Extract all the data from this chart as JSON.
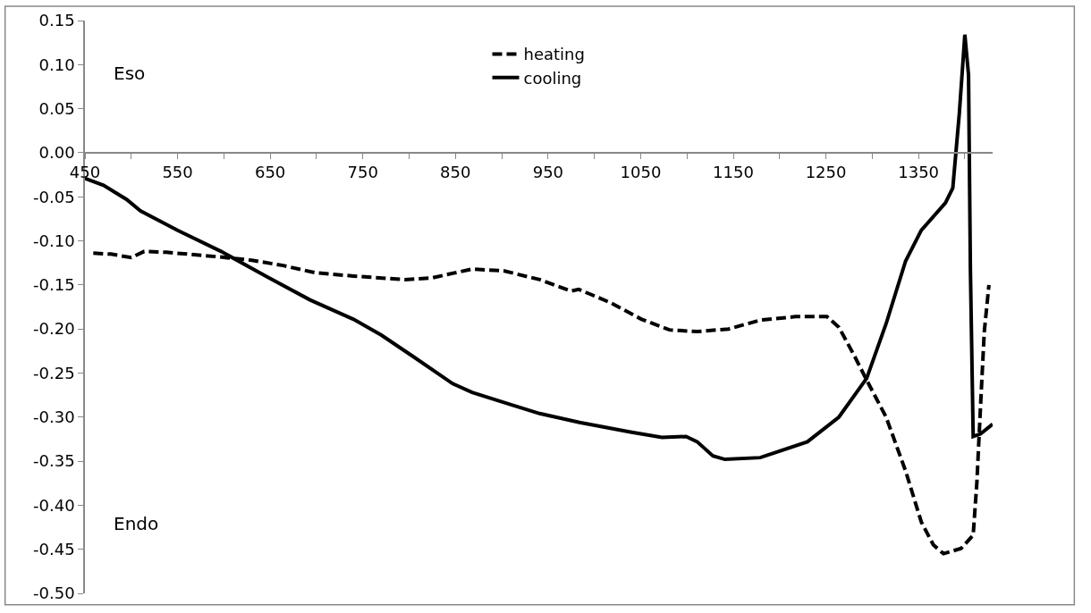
{
  "chart_data": {
    "type": "line",
    "xlim": [
      450,
      1430
    ],
    "xticks": [
      450,
      {
        "value": 500,
        "label": null
      },
      550,
      {
        "value": 600,
        "label": null
      },
      650,
      {
        "value": 700,
        "label": null
      },
      750,
      {
        "value": 800,
        "label": null
      },
      850,
      {
        "value": 900,
        "label": null
      },
      950,
      {
        "value": 1000,
        "label": null
      },
      1050,
      {
        "value": 1100,
        "label": null
      },
      1150,
      {
        "value": 1200,
        "label": null
      },
      1250,
      {
        "value": 1300,
        "label": null
      },
      1350,
      {
        "value": 1400,
        "label": null
      }
    ],
    "ylim": [
      -0.5,
      0.15
    ],
    "yticks": [
      {
        "value": 0.15,
        "label": "0.15"
      },
      {
        "value": 0.1,
        "label": "0.10"
      },
      {
        "value": 0.05,
        "label": "0.05"
      },
      {
        "value": 0,
        "label": "0.00"
      },
      {
        "value": -0.05,
        "label": "-0.05"
      },
      {
        "value": -0.1,
        "label": "-0.10"
      },
      {
        "value": -0.15,
        "label": "-0.15"
      },
      {
        "value": -0.2,
        "label": "-0.20"
      },
      {
        "value": -0.25,
        "label": "-0.25"
      },
      {
        "value": -0.3,
        "label": "-0.30"
      },
      {
        "value": -0.35,
        "label": "-0.35"
      },
      {
        "value": -0.4,
        "label": "-0.40"
      },
      {
        "value": -0.45,
        "label": "-0.45"
      },
      {
        "value": -0.5,
        "label": "-0.50"
      }
    ],
    "legend": "top",
    "marker": "none",
    "annotations": [
      "Eso",
      "Endo"
    ],
    "series": [
      {
        "name": "heating",
        "color": "#000000",
        "line_style": "dashed",
        "x": [
          459,
          478,
          500,
          514,
          538,
          593,
          630,
          664,
          698,
          740,
          795,
          825,
          868,
          902,
          941,
          975,
          983,
          1017,
          1051,
          1081,
          1111,
          1145,
          1179,
          1217,
          1251,
          1264,
          1281,
          1294,
          1315,
          1336,
          1353,
          1366,
          1377,
          1396,
          1409,
          1413,
          1417,
          1421,
          1426
        ],
        "values": [
          -0.114,
          -0.115,
          -0.119,
          -0.112,
          -0.113,
          -0.118,
          -0.122,
          -0.128,
          -0.136,
          -0.14,
          -0.144,
          -0.142,
          -0.132,
          -0.134,
          -0.144,
          -0.157,
          -0.155,
          -0.17,
          -0.189,
          -0.201,
          -0.203,
          -0.2,
          -0.19,
          -0.186,
          -0.186,
          -0.198,
          -0.231,
          -0.258,
          -0.3,
          -0.361,
          -0.419,
          -0.445,
          -0.455,
          -0.449,
          -0.434,
          -0.374,
          -0.286,
          -0.203,
          -0.15
        ]
      },
      {
        "name": "cooling",
        "color": "#000000",
        "line_style": "solid",
        "x": [
          450,
          470,
          495,
          510,
          550,
          597,
          647,
          693,
          740,
          770,
          804,
          847,
          868,
          910,
          941,
          984,
          1039,
          1073,
          1099,
          1111,
          1128,
          1141,
          1179,
          1230,
          1264,
          1294,
          1315,
          1336,
          1353,
          1379,
          1387,
          1394,
          1400,
          1404,
          1406,
          1409,
          1417,
          1430
        ],
        "values": [
          -0.029,
          -0.037,
          -0.053,
          -0.066,
          -0.088,
          -0.112,
          -0.141,
          -0.167,
          -0.189,
          -0.207,
          -0.231,
          -0.262,
          -0.272,
          -0.286,
          -0.296,
          -0.306,
          -0.317,
          -0.323,
          -0.322,
          -0.328,
          -0.344,
          -0.348,
          -0.346,
          -0.328,
          -0.3,
          -0.256,
          -0.194,
          -0.123,
          -0.088,
          -0.057,
          -0.04,
          0.044,
          0.134,
          0.088,
          -0.132,
          -0.322,
          -0.319,
          -0.308
        ]
      }
    ]
  }
}
